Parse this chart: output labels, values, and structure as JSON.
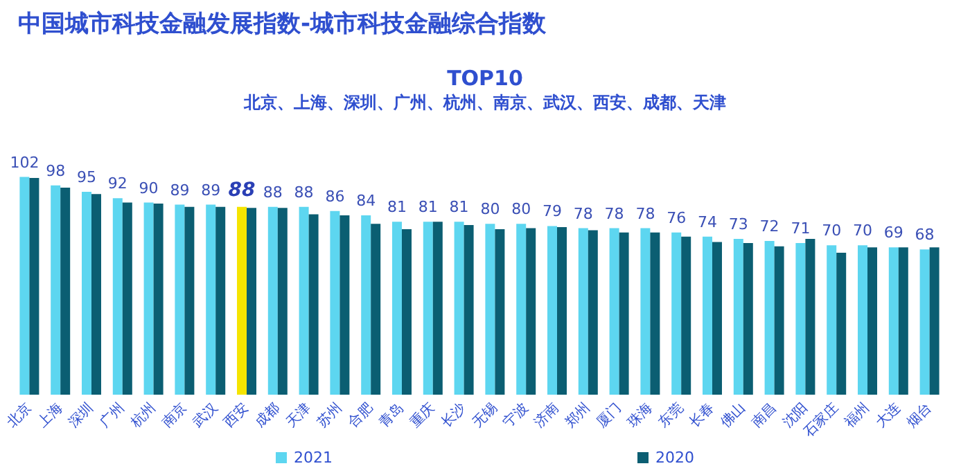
{
  "chart_data": {
    "type": "bar",
    "title": "中国城市科技金融发展指数-城市科技金融综合指数",
    "subtitle": "TOP10",
    "annotations": [
      "北京、上海、深圳、广州、杭州、南京、武汉、西安、成都、天津"
    ],
    "categories": [
      "北京",
      "上海",
      "深圳",
      "广州",
      "杭州",
      "南京",
      "武汉",
      "西安",
      "成都",
      "天津",
      "苏州",
      "合肥",
      "青岛",
      "重庆",
      "长沙",
      "无锡",
      "宁波",
      "济南",
      "郑州",
      "厦门",
      "珠海",
      "东莞",
      "长春",
      "佛山",
      "南昌",
      "沈阳",
      "石家庄",
      "福州",
      "大连",
      "烟台"
    ],
    "series": [
      {
        "name": "2021",
        "color": "#5dd6f0",
        "colors": [
          "#5dd6f0",
          "#5dd6f0",
          "#5dd6f0",
          "#5dd6f0",
          "#5dd6f0",
          "#5dd6f0",
          "#5dd6f0",
          "#f5e400",
          "#5dd6f0",
          "#5dd6f0",
          "#5dd6f0",
          "#5dd6f0",
          "#5dd6f0",
          "#5dd6f0",
          "#5dd6f0",
          "#5dd6f0",
          "#5dd6f0",
          "#5dd6f0",
          "#5dd6f0",
          "#5dd6f0",
          "#5dd6f0",
          "#5dd6f0",
          "#5dd6f0",
          "#5dd6f0",
          "#5dd6f0",
          "#5dd6f0",
          "#5dd6f0",
          "#5dd6f0",
          "#5dd6f0",
          "#5dd6f0"
        ],
        "values": [
          102,
          98,
          95,
          92,
          90,
          89,
          89,
          88,
          88,
          88,
          86,
          84,
          81,
          81,
          81,
          80,
          80,
          79,
          78,
          78,
          78,
          76,
          74,
          73,
          72,
          71,
          70,
          70,
          69,
          68
        ],
        "value_labels": [
          "102",
          "98",
          "95",
          "92",
          "90",
          "89",
          "89",
          "88",
          "88",
          "88",
          "86",
          "84",
          "81",
          "81",
          "81",
          "80",
          "80",
          "79",
          "78",
          "78",
          "78",
          "76",
          "74",
          "73",
          "72",
          "71",
          "70",
          "70",
          "69",
          "68"
        ]
      },
      {
        "name": "2020",
        "color": "#0b5e72",
        "values": [
          101.5,
          97,
          94,
          90,
          89.5,
          88,
          88,
          87.5,
          87.5,
          84.5,
          84,
          80,
          77.5,
          81,
          79.5,
          77.5,
          78,
          78.5,
          77,
          76,
          76,
          74,
          71.5,
          71,
          69.5,
          73,
          66.5,
          69,
          69,
          69
        ]
      }
    ],
    "legend": "bottom"
  }
}
